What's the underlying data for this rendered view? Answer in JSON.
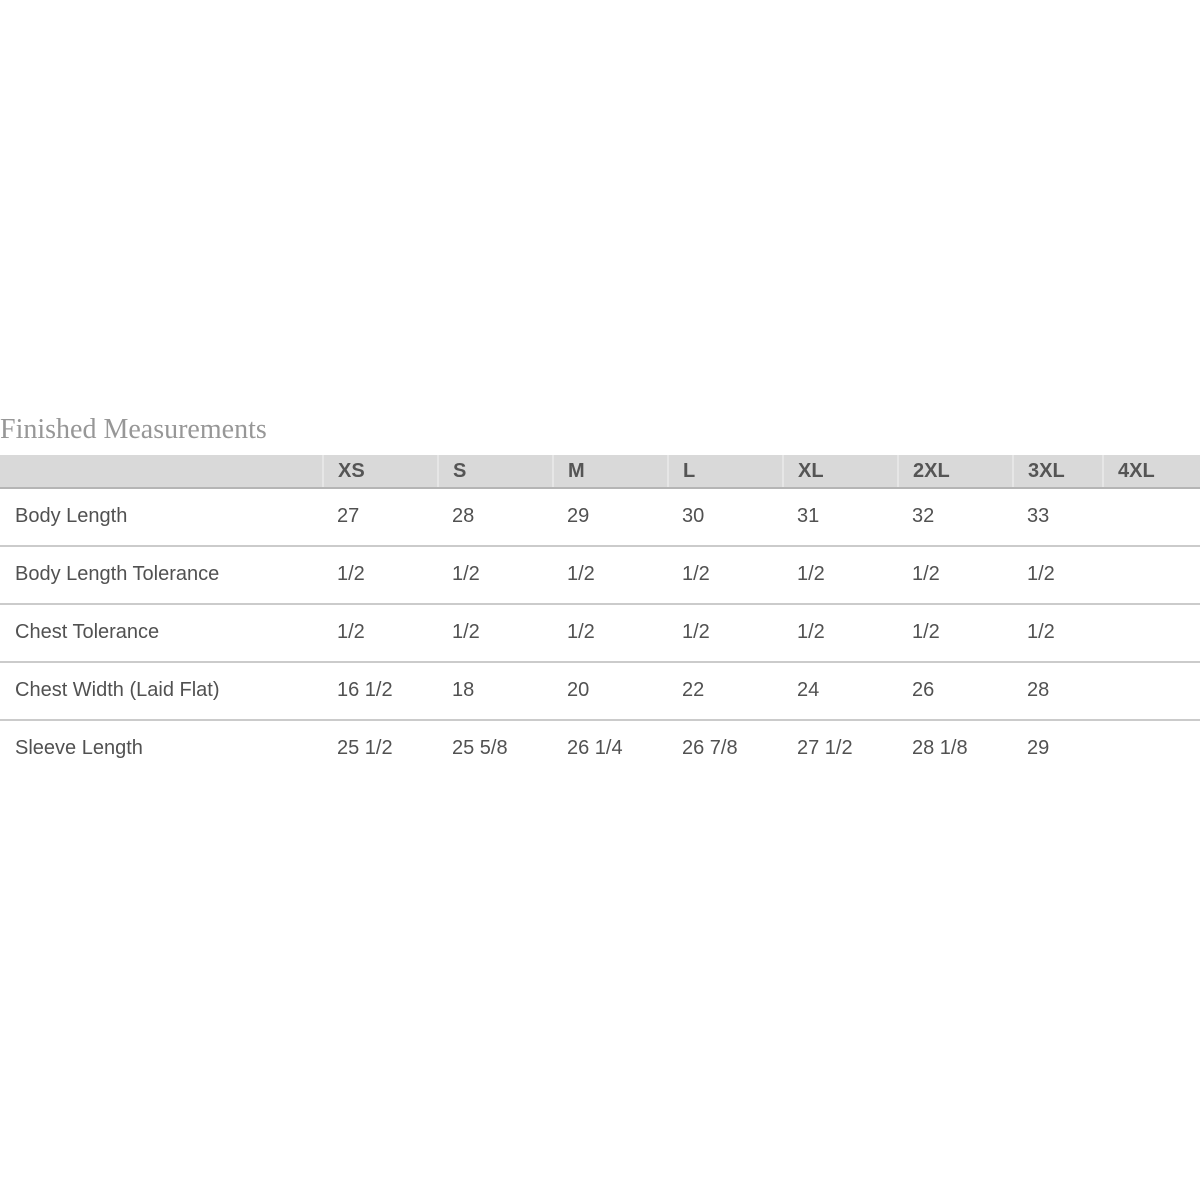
{
  "title": "Finished Measurements",
  "chart_data": {
    "type": "table",
    "title": "Finished Measurements",
    "size_columns": [
      "XS",
      "S",
      "M",
      "L",
      "XL",
      "2XL",
      "3XL",
      "4XL"
    ],
    "rows": [
      {
        "label": "Body Length",
        "values": [
          "27",
          "28",
          "29",
          "30",
          "31",
          "32",
          "33",
          ""
        ]
      },
      {
        "label": "Body Length Tolerance",
        "values": [
          "1/2",
          "1/2",
          "1/2",
          "1/2",
          "1/2",
          "1/2",
          "1/2",
          ""
        ]
      },
      {
        "label": "Chest Tolerance",
        "values": [
          "1/2",
          "1/2",
          "1/2",
          "1/2",
          "1/2",
          "1/2",
          "1/2",
          ""
        ]
      },
      {
        "label": "Chest Width (Laid Flat)",
        "values": [
          "16 1/2",
          "18",
          "20",
          "22",
          "24",
          "26",
          "28",
          ""
        ]
      },
      {
        "label": "Sleeve Length",
        "values": [
          "25 1/2",
          "25 5/8",
          "26 1/4",
          "26 7/8",
          "27 1/2",
          "28 1/8",
          "29",
          ""
        ]
      }
    ]
  },
  "colors": {
    "header_background": "#d9d9d9",
    "header_text": "#555555",
    "cell_text": "#515151",
    "row_divider": "#cbcbcb",
    "header_bottom_border": "#b5b5b5",
    "header_column_separator": "#e6e6e6",
    "title_text": "#979797"
  }
}
